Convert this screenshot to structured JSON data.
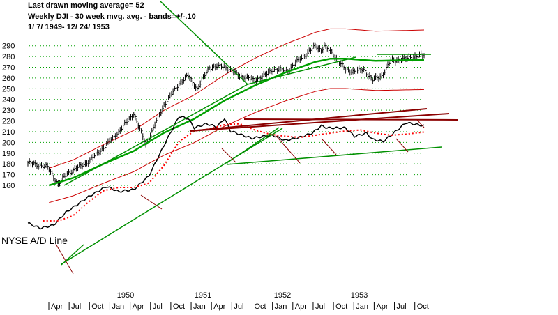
{
  "header": {
    "line1": "Last drawn moving average= 52",
    "line2": "Weekly DJI - 30 week mvg. avg. - bands=+/-.10",
    "line3": "1/ 7/ 1949- 12/ 24/ 1953"
  },
  "colors": {
    "price_bars": "#000000",
    "moving_average": "#00a000",
    "bands": "#cc0000",
    "trend_green": "#009000",
    "trend_dark_red": "#8b0000",
    "ad_line": "#000000",
    "ad_dotted_ma": "#ff0000",
    "gridlines": "#00a000"
  },
  "chart_data": {
    "type": "line",
    "title": "Weekly DJI - 30 week mvg. avg. - bands=+/-.10",
    "yticks": [
      "290",
      "280",
      "270",
      "260",
      "250",
      "240",
      "230",
      "220",
      "210",
      "200",
      "190",
      "180",
      "170",
      "160"
    ],
    "ylim": [
      160,
      295
    ],
    "xaxis": {
      "years": [
        "1950",
        "1951",
        "1952",
        "1953"
      ],
      "months": [
        "Apr",
        "Jul",
        "Oct",
        "Jan",
        "Apr",
        "Jul",
        "Oct",
        "Jan",
        "Apr",
        "Jul",
        "Oct",
        "Jan",
        "Apr",
        "Jul",
        "Oct",
        "Jan",
        "Apr",
        "Jul",
        "Oct"
      ]
    },
    "ad_label": "NYSE A/D Line",
    "dji_anchors": {
      "t": [
        0,
        13,
        20,
        26,
        40,
        52,
        60,
        70,
        78,
        90,
        100,
        106,
        112,
        120,
        130,
        140,
        150,
        156,
        162,
        172,
        180,
        185,
        190,
        194,
        196,
        202,
        205,
        210,
        216,
        222,
        228,
        234,
        240,
        250,
        256,
        262
      ],
      "value": [
        181,
        177,
        161,
        171,
        182,
        198,
        210,
        227,
        198,
        235,
        255,
        262,
        250,
        270,
        271,
        262,
        258,
        262,
        268,
        267,
        278,
        283,
        290,
        286,
        290,
        282,
        276,
        268,
        266,
        268,
        258,
        262,
        276,
        278,
        280,
        281
      ]
    },
    "ma_anchors": {
      "t": [
        14,
        30,
        50,
        70,
        90,
        110,
        130,
        150,
        170,
        190,
        200,
        210,
        230,
        262
      ],
      "value": [
        160,
        167,
        180,
        192,
        209,
        222,
        239,
        253,
        265,
        275,
        278,
        278,
        276,
        277
      ]
    },
    "ad_anchors": {
      "t": [
        0,
        8,
        17,
        25,
        40,
        52,
        60,
        70,
        80,
        92,
        100,
        106,
        110,
        118,
        125,
        130,
        134,
        140,
        148,
        156,
        162,
        170,
        180,
        188,
        194,
        198,
        210,
        216,
        224,
        228,
        235,
        246,
        250,
        262
      ],
      "value": [
        -40,
        -45,
        -42,
        -30,
        -15,
        -5,
        -10,
        -8,
        5,
        40,
        62,
        60,
        51,
        55,
        52,
        60,
        48,
        45,
        41,
        43,
        44,
        39,
        42,
        46,
        53,
        51,
        51,
        43,
        46,
        40,
        38,
        51,
        56,
        53
      ]
    },
    "ad_ma_anchors": {
      "t": [
        10,
        20,
        30,
        40,
        50,
        60,
        70,
        80,
        90,
        100,
        110,
        120,
        130,
        140,
        150,
        160,
        170,
        180,
        190,
        200,
        210,
        220,
        230,
        240,
        250,
        262
      ],
      "value": [
        -38,
        -38,
        -33,
        -20,
        -9,
        -6,
        -6,
        -2,
        15,
        38,
        48,
        50,
        54,
        55,
        49,
        45,
        43,
        42,
        44,
        46,
        48,
        49,
        46,
        44,
        45,
        47
      ]
    }
  }
}
